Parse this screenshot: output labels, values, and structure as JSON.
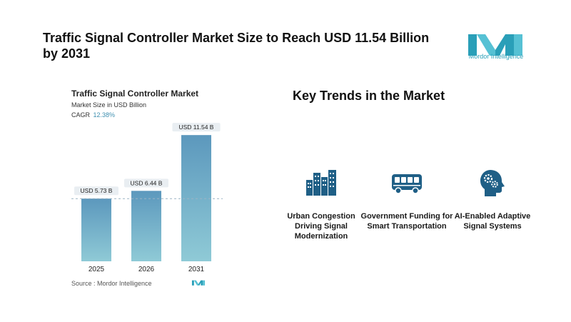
{
  "header": {
    "title": "Traffic Signal Controller Market Size to Reach USD 11.54 Billion by 2031",
    "logo_text": "Mordor Intelligence"
  },
  "colors": {
    "bar_top": "#5c98bd",
    "bar_bottom": "#8fcad6",
    "accent": "#3e8fb0",
    "logo_teal": "#2a9fb8",
    "icon_blue": "#1f5f86"
  },
  "chart_data": {
    "type": "bar",
    "title": "Traffic Signal Controller Market",
    "subtitle": "Market Size in USD Billion",
    "cagr_label": "CAGR",
    "cagr_value": "12.38%",
    "categories": [
      "2025",
      "2026",
      "2031"
    ],
    "values": [
      5.73,
      6.44,
      11.54
    ],
    "data_labels": [
      "USD 5.73 B",
      "USD 6.44 B",
      "USD 11.54 B"
    ],
    "ylim": [
      0,
      12.4
    ],
    "reference_line": 5.73,
    "grid": false
  },
  "source": {
    "text": "Source :  Mordor Intelligence"
  },
  "trends": {
    "title": "Key Trends in the Market",
    "items": [
      {
        "icon": "buildings-icon",
        "label": "Urban Congestion Driving Signal Modernization"
      },
      {
        "icon": "bus-icon",
        "label": "Government Funding for Smart Transportation"
      },
      {
        "icon": "ai-head-icon",
        "label": "AI-Enabled Adaptive Signal Systems"
      }
    ]
  }
}
